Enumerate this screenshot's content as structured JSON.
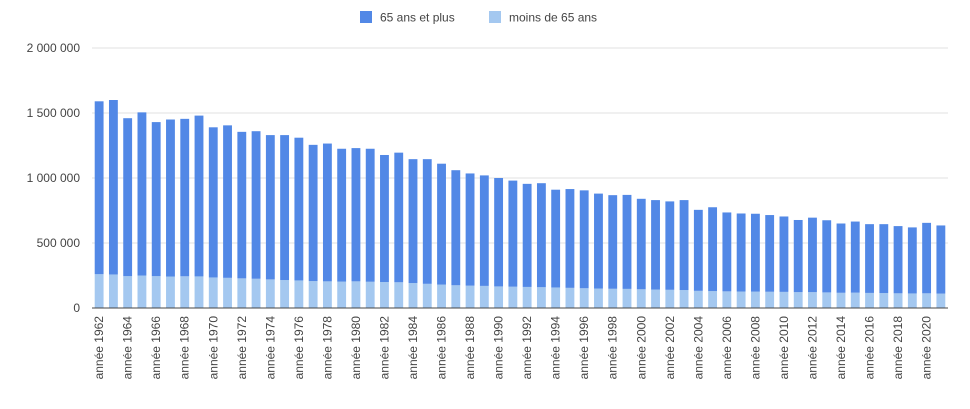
{
  "chart_data": {
    "type": "bar",
    "stacked": true,
    "title": "",
    "xlabel": "",
    "ylabel": "",
    "ylim": [
      0,
      2000000
    ],
    "yticks": [
      0,
      500000,
      1000000,
      1500000,
      2000000
    ],
    "ytick_labels": [
      "0",
      "500 000",
      "1 000 000",
      "1 500 000",
      "2 000 000"
    ],
    "grid": true,
    "legend_position": "top",
    "categories": [
      "année 1962",
      "année 1963",
      "année 1964",
      "année 1965",
      "année 1966",
      "année 1967",
      "année 1968",
      "année 1969",
      "année 1970",
      "année 1971",
      "année 1972",
      "année 1973",
      "année 1974",
      "année 1975",
      "année 1976",
      "année 1977",
      "année 1978",
      "année 1979",
      "année 1980",
      "année 1981",
      "année 1982",
      "année 1983",
      "année 1984",
      "année 1985",
      "année 1986",
      "année 1987",
      "année 1988",
      "année 1989",
      "année 1990",
      "année 1991",
      "année 1992",
      "année 1993",
      "année 1994",
      "année 1995",
      "année 1996",
      "année 1997",
      "année 1998",
      "année 1999",
      "année 2000",
      "année 2001",
      "année 2002",
      "année 2003",
      "année 2004",
      "année 2005",
      "année 2006",
      "année 2007",
      "année 2008",
      "année 2009",
      "année 2010",
      "année 2011",
      "année 2012",
      "année 2013",
      "année 2014",
      "année 2015",
      "année 2016",
      "année 2017",
      "année 2018",
      "année 2019",
      "année 2020",
      "année 2021"
    ],
    "xtick_labels": [
      "année 1962",
      "année 1964",
      "année 1966",
      "année 1968",
      "année 1970",
      "année 1972",
      "année 1974",
      "année 1976",
      "année 1978",
      "année 1980",
      "année 1982",
      "année 1984",
      "année 1986",
      "année 1988",
      "année 1990",
      "année 1992",
      "année 1994",
      "année 1996",
      "année 1998",
      "année 2000",
      "année 2002",
      "année 2004",
      "année 2006",
      "année 2008",
      "année 2010",
      "année 2012",
      "année 2014",
      "année 2016",
      "année 2018",
      "année 2020"
    ],
    "series": [
      {
        "name": "moins de 65 ans",
        "color": "#a4c8f0",
        "values": [
          260000,
          258000,
          245000,
          250000,
          245000,
          242000,
          244000,
          243000,
          235000,
          232000,
          228000,
          225000,
          220000,
          215000,
          212000,
          207000,
          205000,
          203000,
          205000,
          202000,
          200000,
          198000,
          192000,
          186000,
          180000,
          175000,
          172000,
          170000,
          166000,
          164000,
          162000,
          160000,
          158000,
          155000,
          152000,
          150000,
          148000,
          147000,
          144000,
          142000,
          140000,
          138000,
          132000,
          130000,
          128000,
          127000,
          126000,
          125000,
          124000,
          122000,
          122000,
          120000,
          117000,
          118000,
          116000,
          115000,
          113000,
          112000,
          113000,
          111000
        ]
      },
      {
        "name": "65 ans et plus",
        "color": "#5288e6",
        "values": [
          1330000,
          1342000,
          1215000,
          1255000,
          1185000,
          1208000,
          1211000,
          1237000,
          1155000,
          1173000,
          1127000,
          1135000,
          1110000,
          1115000,
          1098000,
          1048000,
          1060000,
          1022000,
          1025000,
          1023000,
          977000,
          997000,
          953000,
          959000,
          930000,
          885000,
          863000,
          850000,
          834000,
          816000,
          793000,
          800000,
          752000,
          760000,
          753000,
          730000,
          720000,
          723000,
          696000,
          688000,
          680000,
          692000,
          623000,
          645000,
          607000,
          600000,
          599000,
          590000,
          580000,
          555000,
          573000,
          555000,
          533000,
          547000,
          529000,
          530000,
          517000,
          508000,
          542000,
          524000
        ]
      }
    ]
  }
}
